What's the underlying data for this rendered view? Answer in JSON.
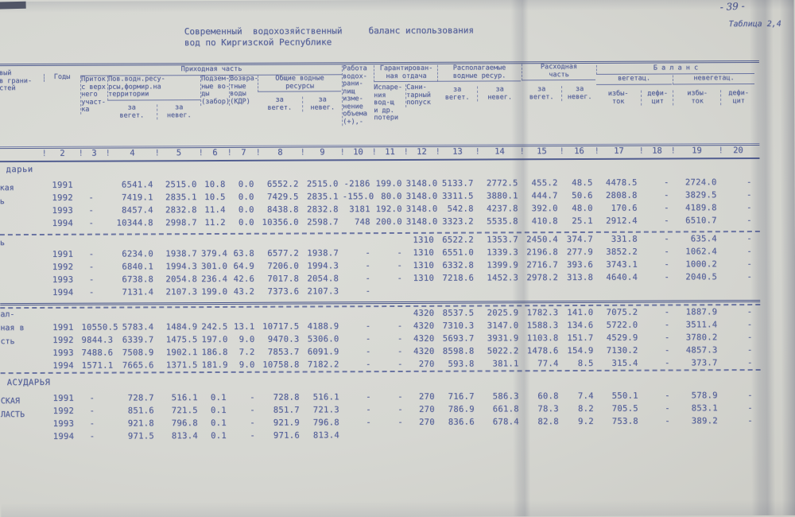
{
  "page": {
    "page_number": "- 39 -",
    "table_label": "Таблица 2,4",
    "title_line1": "Современный  водохозяйственный     баланс использования",
    "title_line2": "вод по Киргизской Республике"
  },
  "header": {
    "col1_fragment": "вый\nв грани-\nстей",
    "year": "Годы",
    "prihod": "Приходная часть",
    "inflow": "Приток\nс верх\nнего\nучаст-\nка",
    "surface": "Пов.водн.ресу-\nрсы,формир.на\nтерритории",
    "veg": "за\nвегет.",
    "neveg": "за\nневег.",
    "ground": "Подзем-\nные во-\nды\n(забор)",
    "return_water": "Возвра-\nтные\nводы\n(КДР)",
    "total": "Общие водные\nресурсы",
    "reservoir": "Работа\nводох-\nрани-\nлищ\nизме-\nнение\nобъема\n(+),-",
    "guaranteed": "Гарантирован-\nная отдача",
    "evaporation": "Испаре-\nния\nвод-щ\nи др.\nпотери",
    "sanitary": "Сани-\nтарный\nпопуск",
    "available": "Располагаемые\nводные ресур.",
    "expense": "Расходная\nчасть",
    "balance": "Б а л а н с",
    "balance_veg": "вегетац.",
    "balance_neveg": "невегетац.",
    "surplus": "избы-\nток",
    "deficit": "дефи-\nцит"
  },
  "numbers_row": [
    "",
    "2",
    "3",
    "4",
    "5",
    "6",
    "7",
    "8",
    "9",
    "10",
    "11",
    "12",
    "13",
    "14",
    "15",
    "16",
    "17",
    "18",
    "19",
    "20"
  ],
  "table": {
    "sections": [
      {
        "heading": "дарьи",
        "side": "кая\nь",
        "rows": [
          {
            "cells": [
              "",
              "1991",
              "",
              "6541.4",
              "2515.0",
              "10.8",
              "0.0",
              "6552.2",
              "2515.0",
              "-2186",
              "199.0",
              "3148.0",
              "5133.7",
              "2772.5",
              "455.2",
              "48.5",
              "4478.5",
              "-",
              "2724.0",
              "-"
            ]
          },
          {
            "cells": [
              "",
              "1992",
              "-",
              "7419.1",
              "2835.1",
              "10.5",
              "0.0",
              "7429.5",
              "2835.1",
              "-155.0",
              "80.0",
              "3148.0",
              "3311.5",
              "3880.1",
              "444.7",
              "50.6",
              "2808.8",
              "-",
              "3829.5",
              "-"
            ]
          },
          {
            "cells": [
              "",
              "1993",
              "-",
              "8457.4",
              "2832.8",
              "11.4",
              "0.0",
              "8438.8",
              "2832.8",
              "3181",
              "192.0",
              "3148.0",
              "542.8",
              "4237.8",
              "392.0",
              "48.0",
              "170.6",
              "-",
              "4189.8",
              "-"
            ]
          },
          {
            "cells": [
              "",
              "1994",
              "-",
              "10344.8",
              "2998.7",
              "11.2",
              "0.0",
              "10356.0",
              "2598.7",
              "748",
              "200.0",
              "3148.0",
              "3323.2",
              "5535.8",
              "410.8",
              "25.1",
              "2912.4",
              "-",
              "6510.7",
              "-"
            ]
          }
        ]
      },
      {
        "side": "ь",
        "rows": [
          {
            "style": "dash",
            "cells": [
              "",
              "",
              "",
              "",
              "",
              "",
              "",
              "",
              "",
              "",
              "",
              "1310",
              "6522.2",
              "1353.7",
              "2450.4",
              "374.7",
              "331.8",
              "-",
              "635.4",
              "-"
            ]
          },
          {
            "cells": [
              "",
              "1991",
              "-",
              "6234.0",
              "1938.7",
              "379.4",
              "63.8",
              "6577.2",
              "1938.7",
              "-",
              "-",
              "1310",
              "6551.0",
              "1339.3",
              "2196.8",
              "277.9",
              "3852.2",
              "-",
              "1062.4",
              "-"
            ]
          },
          {
            "cells": [
              "",
              "1992",
              "-",
              "6840.1",
              "1994.3",
              "301.0",
              "64.9",
              "7206.0",
              "1994.3",
              "-",
              "-",
              "1310",
              "6332.8",
              "1399.9",
              "2716.7",
              "393.6",
              "3743.1",
              "-",
              "1000.2",
              "-"
            ]
          },
          {
            "cells": [
              "",
              "1993",
              "-",
              "6738.8",
              "2054.8",
              "236.4",
              "42.6",
              "7017.8",
              "2054.8",
              "-",
              "-",
              "1310",
              "7218.6",
              "1452.3",
              "2978.2",
              "313.8",
              "4640.4",
              "-",
              "2040.5",
              "-"
            ]
          },
          {
            "cells": [
              "",
              "1994",
              "-",
              "7131.4",
              "2107.3",
              "199.0",
              "43.2",
              "7373.6",
              "2107.3",
              "-",
              "",
              "",
              "",
              "",
              "",
              "",
              "",
              "",
              "",
              ""
            ]
          }
        ]
      },
      {
        "divider": "double",
        "side": "ал-\nная в\nсть",
        "rows": [
          {
            "style": "dash",
            "cells": [
              "",
              "",
              "",
              "",
              "",
              "",
              "",
              "",
              "",
              "",
              "",
              "4320",
              "8537.5",
              "2025.9",
              "1782.3",
              "141.0",
              "7075.2",
              "-",
              "1887.9",
              "-"
            ]
          },
          {
            "cells": [
              "",
              "1991",
              "10550.5",
              "5783.4",
              "1484.9",
              "242.5",
              "13.1",
              "10717.5",
              "4188.9",
              "-",
              "-",
              "4320",
              "7310.3",
              "3147.0",
              "1588.3",
              "134.6",
              "5722.0",
              "-",
              "3511.4",
              "-"
            ]
          },
          {
            "cells": [
              "",
              "1992",
              "9844.3",
              "6339.7",
              "1475.5",
              "197.0",
              "9.0",
              "9470.3",
              "5306.0",
              "-",
              "-",
              "4320",
              "5693.7",
              "3931.9",
              "1103.8",
              "151.7",
              "4529.9",
              "-",
              "3780.2",
              "-"
            ]
          },
          {
            "cells": [
              "",
              "1993",
              "7488.6",
              "7508.9",
              "1902.1",
              "186.8",
              "7.2",
              "7853.7",
              "6091.9",
              "-",
              "-",
              "4320",
              "8598.8",
              "5022.2",
              "1478.6",
              "154.9",
              "7130.2",
              "-",
              "4857.3",
              "-"
            ]
          },
          {
            "style": "dashb",
            "cells": [
              "",
              "1994",
              "1571.1",
              "7665.6",
              "1371.5",
              "181.9",
              "9.0",
              "10758.8",
              "7182.2",
              "-",
              "-",
              "270",
              "593.8",
              "381.1",
              "77.4",
              "8.5",
              "315.4",
              "-",
              "373.7",
              "-"
            ]
          }
        ]
      },
      {
        "heading": "АСУДАРЬЯ",
        "side": "СКАЯ\nЛАСТЬ",
        "rows": [
          {
            "cells": [
              "",
              "1991",
              "-",
              "728.7",
              "516.1",
              "0.1",
              "-",
              "728.8",
              "516.1",
              "-",
              "-",
              "270",
              "716.7",
              "586.3",
              "60.8",
              "7.4",
              "550.1",
              "-",
              "578.9",
              "-"
            ]
          },
          {
            "cells": [
              "",
              "1992",
              "-",
              "851.6",
              "721.5",
              "0.1",
              "-",
              "851.7",
              "721.3",
              "-",
              "-",
              "270",
              "786.9",
              "661.8",
              "78.3",
              "8.2",
              "705.5",
              "-",
              "853.1",
              "-"
            ]
          },
          {
            "cells": [
              "",
              "1993",
              "-",
              "921.8",
              "796.8",
              "0.1",
              "-",
              "921.9",
              "796.8",
              "-",
              "-",
              "270",
              "836.6",
              "678.4",
              "82.8",
              "9.2",
              "753.8",
              "-",
              "389.2",
              "-"
            ]
          },
          {
            "cells": [
              "",
              "1994",
              "-",
              "971.5",
              "813.4",
              "0.1",
              "-",
              "971.6",
              "813.4",
              "",
              "",
              "",
              "",
              "",
              "",
              "",
              "",
              "",
              "",
              ""
            ]
          }
        ]
      }
    ]
  },
  "colors": {
    "ink": "#57639b",
    "rule": "#525e90",
    "paper": "#d6d7d2"
  }
}
